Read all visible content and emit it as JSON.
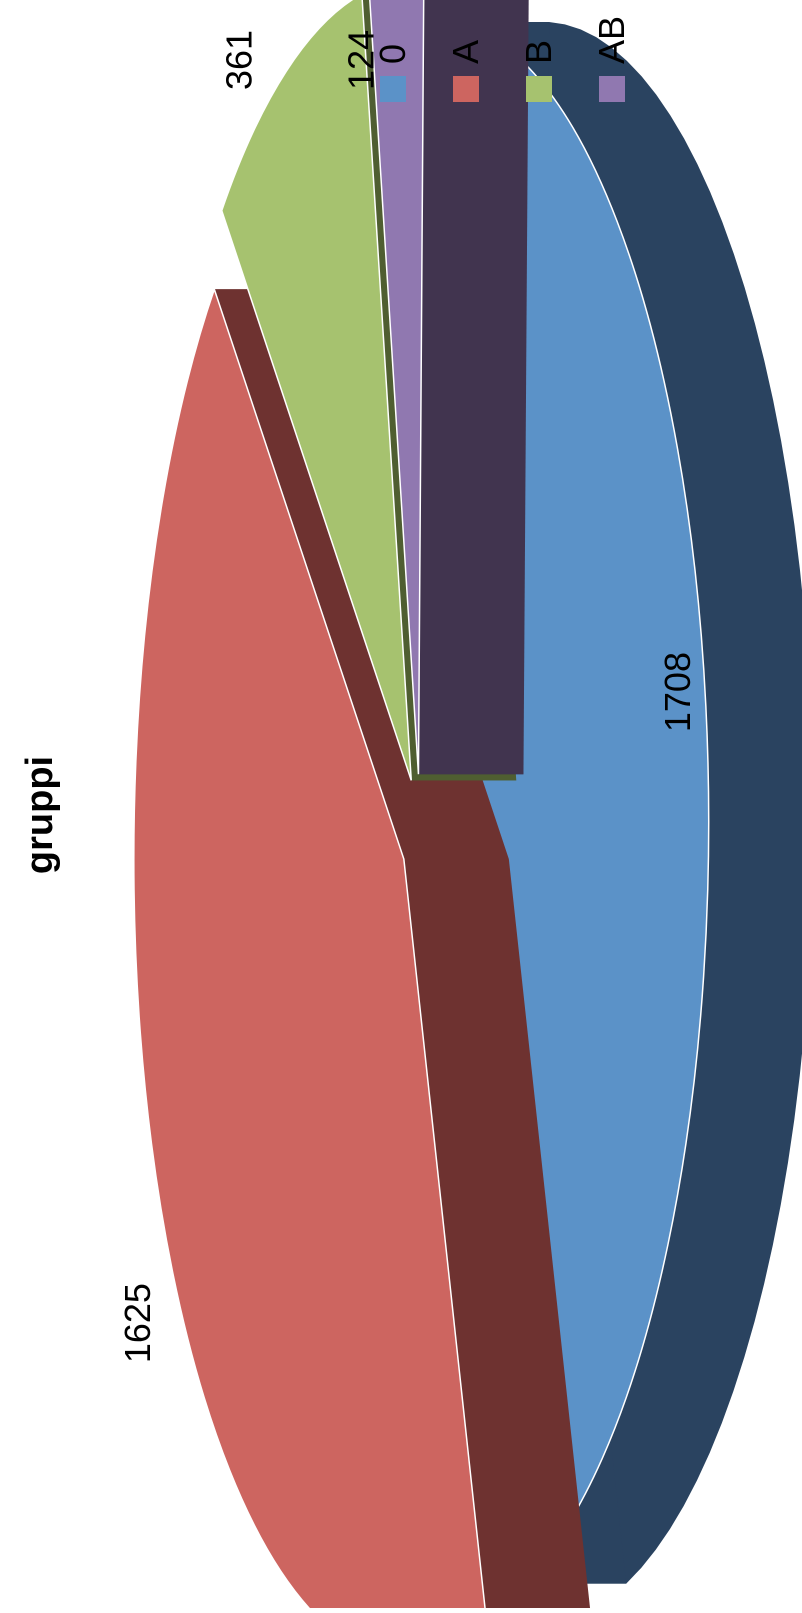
{
  "chart_data": {
    "type": "pie",
    "title": "gruppi",
    "categories": [
      "0",
      "A",
      "B",
      "AB"
    ],
    "values": [
      1708,
      1625,
      361,
      124
    ],
    "colors": [
      "#5B92C8",
      "#CD6560",
      "#A6C26F",
      "#9078B0"
    ],
    "side_colors": [
      "#2A4360",
      "#6E3230",
      "#4F5E31",
      "#41344F"
    ],
    "legend": "top-right",
    "data_labels": true,
    "exploded": true,
    "style": "3d"
  }
}
